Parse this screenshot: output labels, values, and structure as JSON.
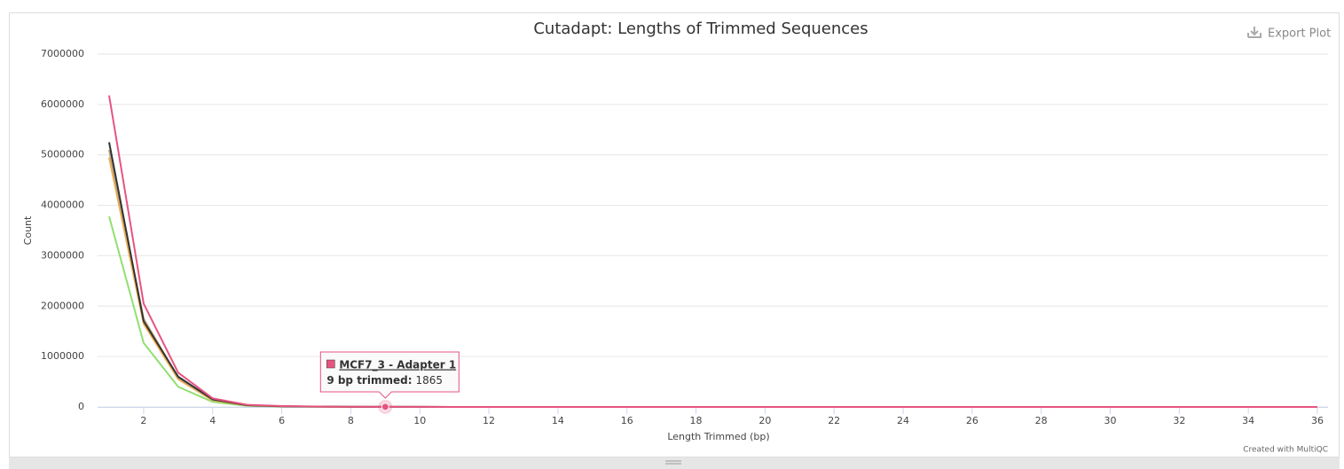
{
  "chart_data": {
    "type": "line",
    "title": "Cutadapt: Lengths of Trimmed Sequences",
    "x_label": "Length Trimmed (bp)",
    "y_label": "Count",
    "export_label": "Export Plot",
    "credit": "Created with MultiQC",
    "x": [
      1,
      2,
      3,
      4,
      5,
      6,
      7,
      8,
      9,
      10,
      11,
      12,
      13,
      14,
      15,
      16,
      17,
      18,
      19,
      20,
      21,
      22,
      23,
      24,
      25,
      26,
      27,
      28,
      29,
      30,
      31,
      32,
      33,
      34,
      35,
      36
    ],
    "xlim": [
      1,
      36
    ],
    "xticks": [
      2,
      4,
      6,
      8,
      10,
      12,
      14,
      16,
      18,
      20,
      22,
      24,
      26,
      28,
      30,
      32,
      34,
      36
    ],
    "ylim": [
      0,
      7000000
    ],
    "yticks": [
      0,
      1000000,
      2000000,
      3000000,
      4000000,
      5000000,
      6000000,
      7000000
    ],
    "grid": true,
    "series": [
      {
        "color": "#90e070",
        "values": [
          3780000,
          1270000,
          400000,
          100000,
          21000,
          9000,
          4000,
          1800,
          1100,
          800,
          600,
          500,
          450,
          400,
          380,
          360,
          340,
          320,
          300,
          290,
          280,
          270,
          260,
          250,
          240,
          230,
          220,
          210,
          200,
          190,
          180,
          170,
          160,
          150,
          140,
          130
        ]
      },
      {
        "color": "#f0b050",
        "values": [
          4950000,
          1650000,
          550000,
          130000,
          30000,
          12000,
          5500,
          2500,
          1500,
          1000,
          800,
          650,
          550,
          500,
          470,
          440,
          420,
          400,
          380,
          360,
          340,
          320,
          310,
          300,
          290,
          280,
          270,
          260,
          250,
          240,
          230,
          220,
          210,
          200,
          190,
          180
        ]
      },
      {
        "color": "#b8a080",
        "values": [
          5100000,
          1750000,
          580000,
          145000,
          33000,
          13000,
          6000,
          2700,
          1600,
          1100,
          850,
          700,
          600,
          520,
          490,
          460,
          430,
          410,
          390,
          370,
          350,
          330,
          320,
          310,
          300,
          290,
          280,
          270,
          260,
          250,
          240,
          230,
          220,
          210,
          200,
          190
        ]
      },
      {
        "color": "#333333",
        "values": [
          5250000,
          1700000,
          600000,
          150000,
          35000,
          14000,
          6500,
          2900,
          1700,
          1150,
          900,
          720,
          620,
          540,
          500,
          470,
          440,
          420,
          400,
          380,
          360,
          340,
          330,
          320,
          310,
          300,
          290,
          280,
          270,
          260,
          250,
          240,
          230,
          220,
          210,
          200
        ]
      },
      {
        "name": "MCF7_3 - Adapter 1",
        "color": "#e75480",
        "values": [
          6180000,
          2050000,
          680000,
          170000,
          42000,
          18000,
          8000,
          3500,
          1865,
          1300,
          1000,
          800,
          680,
          600,
          550,
          510,
          480,
          450,
          430,
          410,
          390,
          370,
          350,
          340,
          330,
          320,
          310,
          300,
          290,
          280,
          270,
          260,
          250,
          240,
          230,
          220
        ]
      }
    ],
    "tooltip": {
      "series": 4,
      "index": 8,
      "label": "9 bp trimmed:"
    }
  }
}
